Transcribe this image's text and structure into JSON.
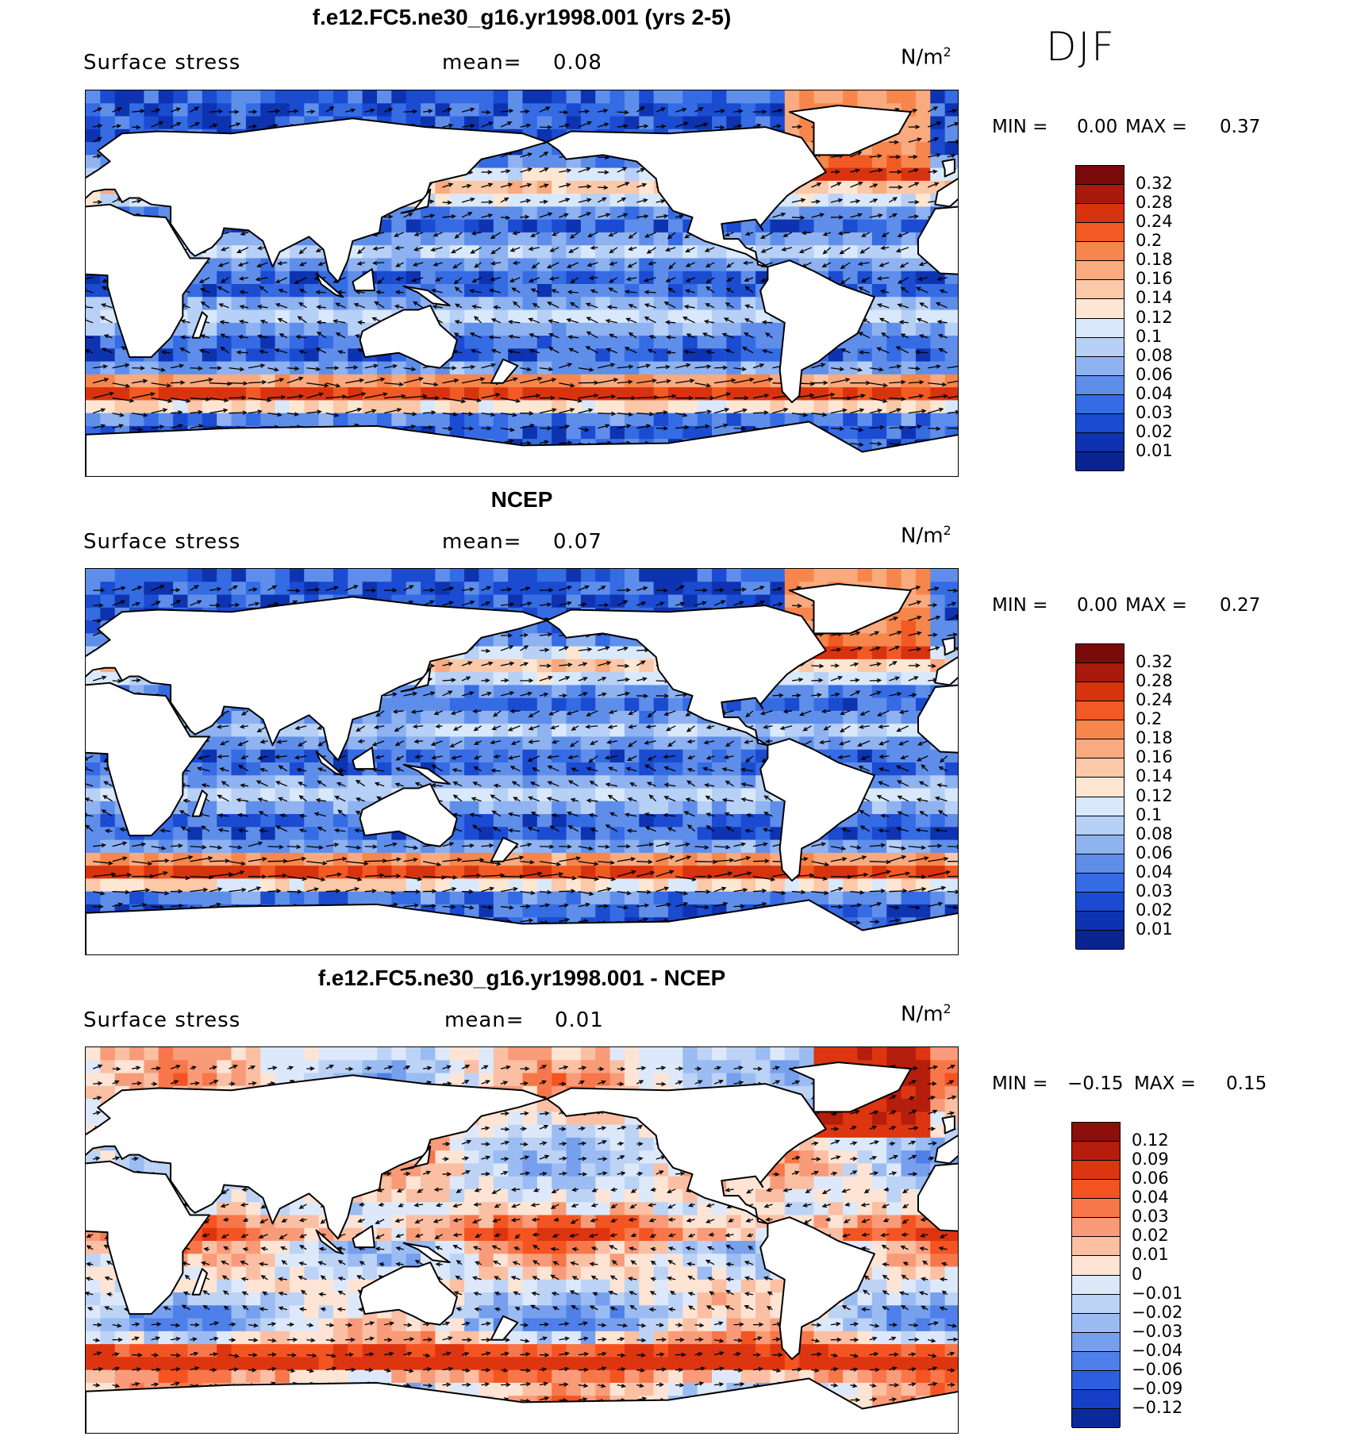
{
  "season": "DJF",
  "panels": [
    {
      "title": "f.e12.FC5.ne30_g16.yr1998.001 (yrs 2-5)",
      "field": "Surface stress",
      "mean_label": "mean=",
      "mean_value": "0.08",
      "units": "N/m",
      "units_exp": "2",
      "min_label": "MIN =",
      "min_value": "0.00",
      "max_label": "MAX =",
      "max_value": "0.37",
      "legend": [
        "0.32",
        "0.28",
        "0.24",
        "0.2",
        "0.18",
        "0.16",
        "0.14",
        "0.12",
        "0.1",
        "0.08",
        "0.06",
        "0.04",
        "0.03",
        "0.02",
        "0.01"
      ],
      "colors": [
        "#7a0a0a",
        "#a81a0c",
        "#d8330f",
        "#f25a24",
        "#f7864c",
        "#f9aa7e",
        "#fbc8a8",
        "#fde7d3",
        "#d9e9fb",
        "#b7d0f6",
        "#8fb2f0",
        "#5f8eea",
        "#356be3",
        "#1a4bd0",
        "#0d33b0",
        "#0a2490"
      ],
      "seed": 11,
      "mode": "abs"
    },
    {
      "title": "NCEP",
      "field": "Surface stress",
      "mean_label": "mean=",
      "mean_value": "0.07",
      "units": "N/m",
      "units_exp": "2",
      "min_label": "MIN =",
      "min_value": "0.00",
      "max_label": "MAX =",
      "max_value": "0.27",
      "legend": [
        "0.32",
        "0.28",
        "0.24",
        "0.2",
        "0.18",
        "0.16",
        "0.14",
        "0.12",
        "0.1",
        "0.08",
        "0.06",
        "0.04",
        "0.03",
        "0.02",
        "0.01"
      ],
      "colors": [
        "#7a0a0a",
        "#a81a0c",
        "#d8330f",
        "#f25a24",
        "#f7864c",
        "#f9aa7e",
        "#fbc8a8",
        "#fde7d3",
        "#d9e9fb",
        "#b7d0f6",
        "#8fb2f0",
        "#5f8eea",
        "#356be3",
        "#1a4bd0",
        "#0d33b0",
        "#0a2490"
      ],
      "seed": 23,
      "mode": "abs"
    },
    {
      "title": "f.e12.FC5.ne30_g16.yr1998.001 - NCEP",
      "field": "Surface stress",
      "mean_label": "mean=",
      "mean_value": "0.01",
      "units": "N/m",
      "units_exp": "2",
      "min_label": "MIN =",
      "min_value": "−0.15",
      "max_label": "MAX =",
      "max_value": "0.15",
      "legend": [
        "0.12",
        "0.09",
        "0.06",
        "0.04",
        "0.03",
        "0.02",
        "0.01",
        "0",
        "−0.01",
        "−0.02",
        "−0.03",
        "−0.04",
        "−0.06",
        "−0.09",
        "−0.12"
      ],
      "colors": [
        "#8c0f0a",
        "#b51d0c",
        "#dc3510",
        "#f45422",
        "#f7774a",
        "#f99b78",
        "#fbbfa3",
        "#fde4d4",
        "#dde9fa",
        "#bcd3f6",
        "#9abcf2",
        "#769fee",
        "#4f7fe8",
        "#2d5ee0",
        "#143fc6",
        "#0a2a9a"
      ],
      "seed": 37,
      "mode": "diff"
    }
  ]
}
